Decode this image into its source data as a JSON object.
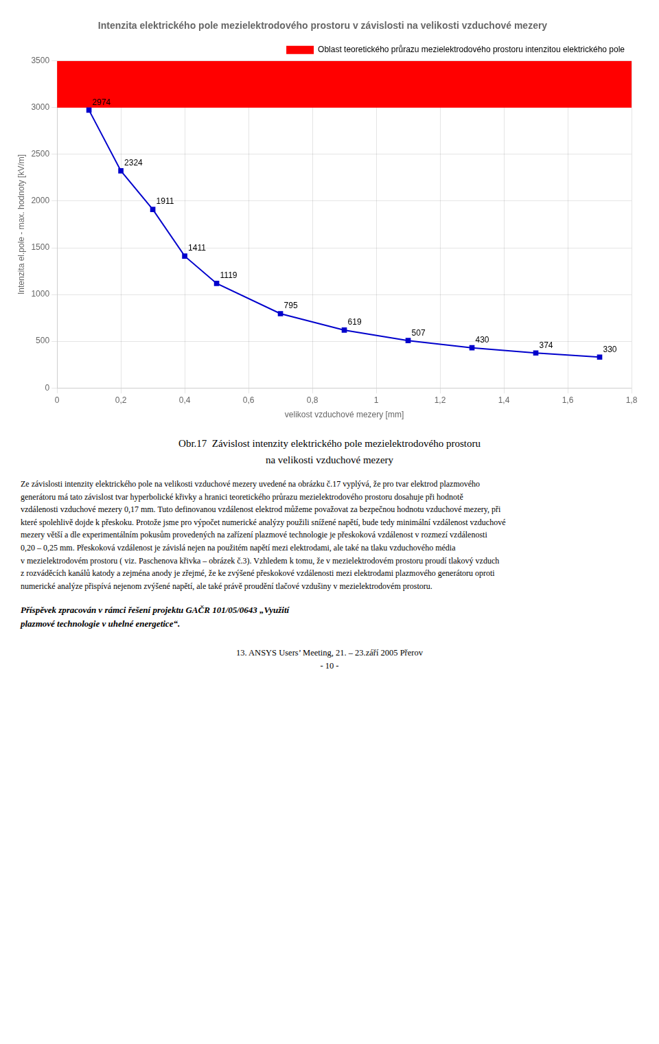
{
  "chart_data": {
    "type": "line",
    "title": "Intenzita elektrického pole mezielektrodového prostoru v závislosti na velikosti vzduchové mezery",
    "xlabel": "velikost vzduchové mezery [mm]",
    "ylabel": "Intenzita el.pole - max. hodnoty [kV/m]",
    "x": [
      0.1,
      0.2,
      0.3,
      0.4,
      0.5,
      0.7,
      0.9,
      1.1,
      1.3,
      1.5,
      1.7
    ],
    "values": [
      2974,
      2324,
      1911,
      1411,
      1119,
      795,
      619,
      507,
      430,
      374,
      330
    ],
    "color": "#0000CC",
    "marker": "square",
    "data_labels": true,
    "xlim": [
      0,
      1.8
    ],
    "ylim": [
      0,
      3500
    ],
    "xticks": [
      0,
      {
        "value": 0.2,
        "label": "0,2"
      },
      {
        "value": 0.4,
        "label": "0,4"
      },
      {
        "value": 0.6,
        "label": "0,6"
      },
      {
        "value": 0.8,
        "label": "0,8"
      },
      1,
      {
        "value": 1.2,
        "label": "1,2"
      },
      {
        "value": 1.4,
        "label": "1,4"
      },
      {
        "value": 1.6,
        "label": "1,6"
      },
      {
        "value": 1.8,
        "label": "1,8"
      }
    ],
    "yticks": [
      0,
      500,
      1000,
      1500,
      2000,
      2500,
      3000,
      3500
    ],
    "grid": true,
    "legend": "upper right",
    "regions": [
      {
        "name": "Oblast teoretického průrazu mezielektrodového prostoru intenzitou elektrického pole",
        "color": "#FF0000",
        "ymin": 3000,
        "ymax": 3500
      }
    ],
    "caption": "Obr.17  Závislost intenzity elektrického pole mezielektrodového prostoru\nna velikosti vzduchové mezery",
    "body_text": "Ze závislosti intenzity elektrického pole na velikosti vzduchové mezery uvedené na obrázku č.17 vyplývá, že pro tvar elektrod plazmového\ngenerátoru má tato závislost tvar hyperbolické křivky a hranici teoretického průrazu mezielektrodového prostoru dosahuje při hodnotě\nvzdálenosti vzduchové mezery 0,17 mm. Tuto definovanou vzdálenost elektrod můžeme považovat za bezpečnou hodnotu vzduchové mezery, při\nkteré spolehlivě dojde k přeskoku. Protože jsme pro výpočet numerické analýzy použili snížené napětí, bude tedy minimální vzdálenost vzduchové\nmezery větší a dle experimentálním pokusům provedených na zařízení plazmové technologie je přeskoková vzdálenost v rozmezí vzdálenosti\n0,20 – 0,25 mm. Přeskoková vzdálenost je závislá nejen na použitém napětí mezi elektrodami, ale také na tlaku vzduchového média\nv mezielektrodovém prostoru ( viz. Paschenova křivka – obrázek č.3). Vzhledem k tomu, že v mezielektrodovém prostoru proudí tlakový vzduch\nz rozváděcích kanálů katody a zejména anody je zřejmé, že ke zvýšené přeskokové vzdálenosti mezi elektrodami plazmového generátoru oproti\nnumerické analýze přispívá nejenom zvýšené napětí, ale také právě proudění tlačové vzdušiny v mezielektrodovém prostoru.",
    "note": "Příspěvek zpracován v rámci řešení projektu GAČR 101/05/0643 „Využití\nplazmové technologie v uhelné energetice“.",
    "footer": "13. ANSYS Users’ Meeting, 21. – 23.září 2005 Přerov\n- 10 -"
  }
}
